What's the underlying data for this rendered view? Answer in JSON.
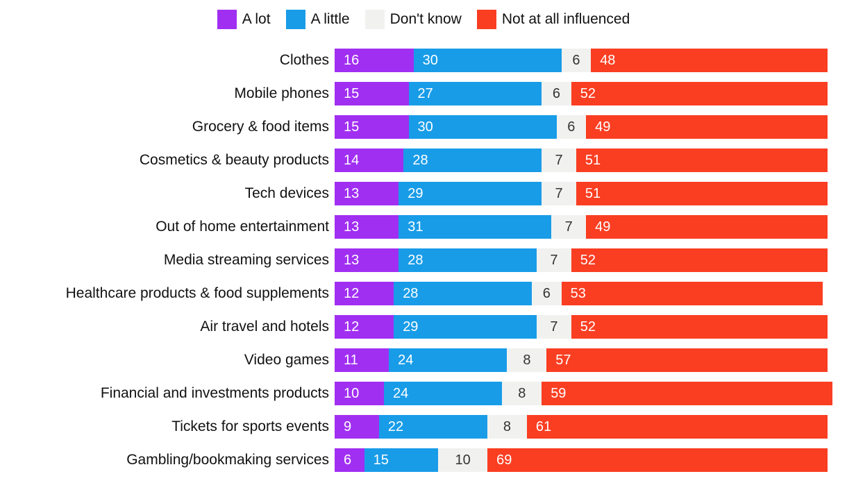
{
  "chart_data": {
    "type": "bar",
    "subtype": "horizontal-stacked",
    "unit": "percent",
    "title": "",
    "xlabel": "",
    "ylabel": "",
    "xlim": [
      0,
      100
    ],
    "grid": false,
    "legend_position": "top",
    "value_labels": "inside",
    "categories": [
      "Clothes",
      "Mobile phones",
      "Grocery & food items",
      "Cosmetics & beauty products",
      "Tech devices",
      "Out of home entertainment",
      "Media streaming services",
      "Healthcare products & food supplements",
      "Air travel and hotels",
      "Video games",
      "Financial and investments products",
      "Tickets for sports events",
      "Gambling/bookmaking services"
    ],
    "series": [
      {
        "name": "A lot",
        "color": "#A12FF2",
        "text_color": "#ffffff",
        "label_align": "start",
        "values": [
          16,
          15,
          15,
          14,
          13,
          13,
          13,
          12,
          12,
          11,
          10,
          9,
          6
        ]
      },
      {
        "name": "A little",
        "color": "#189CE8",
        "text_color": "#ffffff",
        "label_align": "start",
        "values": [
          30,
          27,
          30,
          28,
          29,
          31,
          28,
          28,
          29,
          24,
          24,
          22,
          15
        ]
      },
      {
        "name": "Don't know",
        "color": "#F1F1EF",
        "text_color": "#333333",
        "label_align": "center",
        "values": [
          6,
          6,
          6,
          7,
          7,
          7,
          7,
          6,
          7,
          8,
          8,
          8,
          10
        ]
      },
      {
        "name": "Not at all influenced",
        "color": "#FA3E22",
        "text_color": "#ffffff",
        "label_align": "start",
        "values": [
          48,
          52,
          49,
          51,
          51,
          49,
          52,
          53,
          52,
          57,
          59,
          61,
          69
        ]
      }
    ]
  },
  "colors": {
    "background": "#ffffff",
    "label_text": "#111111"
  }
}
